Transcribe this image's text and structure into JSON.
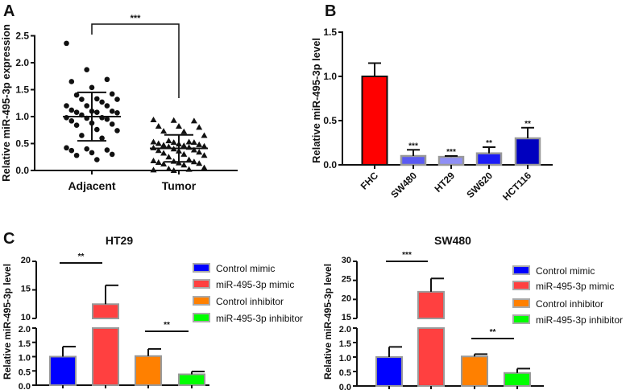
{
  "panels": {
    "a": "A",
    "b": "B",
    "c": "C"
  },
  "chart_data": [
    {
      "id": "A",
      "type": "scatter",
      "ylabel": "Relative miR-495-3p expression",
      "ylim": [
        0,
        2.5
      ],
      "yticks": [
        "0.0",
        "0.5",
        "1.0",
        "1.5",
        "2.0",
        "2.5"
      ],
      "categories": [
        "Adjacent",
        "Tumor"
      ],
      "significance": "***",
      "groups": [
        {
          "name": "Adjacent",
          "marker": "circle",
          "mean": 1.0,
          "sd": 0.45,
          "values": [
            2.36,
            1.87,
            1.69,
            1.65,
            1.54,
            1.42,
            1.4,
            1.33,
            1.32,
            1.32,
            1.27,
            1.2,
            1.2,
            1.2,
            1.12,
            1.1,
            1.1,
            1.08,
            1.08,
            1.07,
            1.03,
            0.98,
            0.98,
            0.97,
            0.95,
            0.92,
            0.88,
            0.86,
            0.84,
            0.76,
            0.74,
            0.65,
            0.6,
            0.42,
            0.4,
            0.38,
            0.37,
            0.33,
            0.3,
            0.28,
            0.2
          ]
        },
        {
          "name": "Tumor",
          "marker": "triangle",
          "mean": 0.41,
          "sd": 0.25,
          "values": [
            0.94,
            0.93,
            0.92,
            0.82,
            0.82,
            0.8,
            0.73,
            0.72,
            0.65,
            0.55,
            0.53,
            0.53,
            0.52,
            0.52,
            0.5,
            0.49,
            0.48,
            0.47,
            0.46,
            0.45,
            0.44,
            0.43,
            0.42,
            0.4,
            0.38,
            0.37,
            0.36,
            0.34,
            0.32,
            0.3,
            0.28,
            0.25,
            0.2,
            0.18,
            0.17,
            0.16,
            0.15,
            0.14,
            0.13,
            0.12,
            0.1,
            0.05,
            0.03,
            0.02,
            0.01,
            0.0
          ]
        }
      ]
    },
    {
      "id": "B",
      "type": "bar",
      "ylabel": "Relative miR-495-3p level",
      "ylim": [
        0,
        1.5
      ],
      "yticks": [
        "0.0",
        "0.5",
        "1.0",
        "1.5"
      ],
      "categories": [
        "FHC",
        "SW480",
        "HT29",
        "SW620",
        "HCT116"
      ],
      "values": [
        1.0,
        0.1,
        0.09,
        0.13,
        0.3
      ],
      "errors": [
        0.15,
        0.07,
        0.01,
        0.07,
        0.12
      ],
      "significance": [
        "",
        "***",
        "***",
        "**",
        "**"
      ],
      "colors": [
        "#ff0000",
        "#5a5af2",
        "#8f8ff5",
        "#1c1cf5",
        "#0000bf"
      ]
    },
    {
      "id": "C-HT29",
      "type": "bar",
      "title": "HT29",
      "ylabel": "Relative miR-495-3p level",
      "ylim_lower": [
        0,
        2
      ],
      "ylim_upper": [
        10,
        20
      ],
      "yticks_lower": [
        "0.0",
        "0.5",
        "1.0",
        "1.5",
        "2.0"
      ],
      "yticks_upper": [
        "10",
        "15",
        "20"
      ],
      "legend": [
        "Control mimic",
        "miR-495-3p mimic",
        "Control inhibitor",
        "miR-495-3p inhibitor"
      ],
      "values": [
        1.0,
        12.5,
        1.02,
        0.38
      ],
      "errors": [
        0.35,
        3.3,
        0.25,
        0.1
      ],
      "colors": [
        "#0000ff",
        "#ff4040",
        "#ff8000",
        "#00ff00"
      ],
      "comparisons": [
        {
          "pair": [
            0,
            1
          ],
          "label": "**"
        },
        {
          "pair": [
            2,
            3
          ],
          "label": "**"
        }
      ]
    },
    {
      "id": "C-SW480",
      "type": "bar",
      "title": "SW480",
      "ylabel": "Relative miR-495-3p level",
      "ylim_lower": [
        0,
        2
      ],
      "ylim_upper": [
        15,
        30
      ],
      "yticks_lower": [
        "0.0",
        "0.5",
        "1.0",
        "1.5",
        "2.0"
      ],
      "yticks_upper": [
        "15",
        "20",
        "25",
        "30"
      ],
      "legend": [
        "Control mimic",
        "miR-495-3p mimic",
        "Control inhibitor",
        "miR-495-3p inhibitor"
      ],
      "values": [
        1.0,
        22.0,
        1.02,
        0.45
      ],
      "errors": [
        0.35,
        3.5,
        0.08,
        0.15
      ],
      "colors": [
        "#0000ff",
        "#ff4040",
        "#ff8000",
        "#00ff00"
      ],
      "comparisons": [
        {
          "pair": [
            0,
            1
          ],
          "label": "***"
        },
        {
          "pair": [
            2,
            3
          ],
          "label": "**"
        }
      ]
    }
  ]
}
